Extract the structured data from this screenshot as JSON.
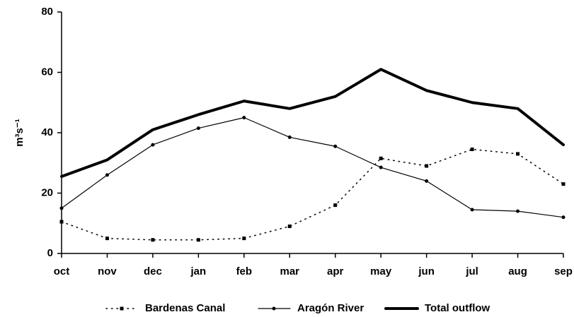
{
  "chart_data": {
    "type": "line",
    "y_label": "m³s⁻¹",
    "categories": [
      "oct",
      "nov",
      "dec",
      "jan",
      "feb",
      "mar",
      "apr",
      "may",
      "jun",
      "jul",
      "aug",
      "sep"
    ],
    "series": [
      {
        "name": "Bardenas Canal",
        "color": "#000000",
        "style": "dotted",
        "marker": "square",
        "values": [
          10.5,
          5,
          4.5,
          4.5,
          5,
          9,
          16,
          31.5,
          29,
          34.5,
          33,
          23
        ]
      },
      {
        "name": "Aragón River",
        "color": "#000000",
        "style": "solid",
        "marker": "circle",
        "values": [
          15,
          26,
          36,
          41.5,
          45,
          38.5,
          35.5,
          28.5,
          24,
          14.5,
          14,
          12
        ]
      },
      {
        "name": "Total outflow",
        "color": "#000000",
        "style": "thick",
        "marker": "none",
        "values": [
          25.5,
          31,
          41,
          46,
          50.5,
          48,
          52,
          61,
          54,
          50,
          48,
          36
        ]
      }
    ],
    "ylim": [
      0,
      80
    ],
    "yticks": [
      0,
      20,
      40,
      60,
      80
    ],
    "legend": "bottom"
  }
}
